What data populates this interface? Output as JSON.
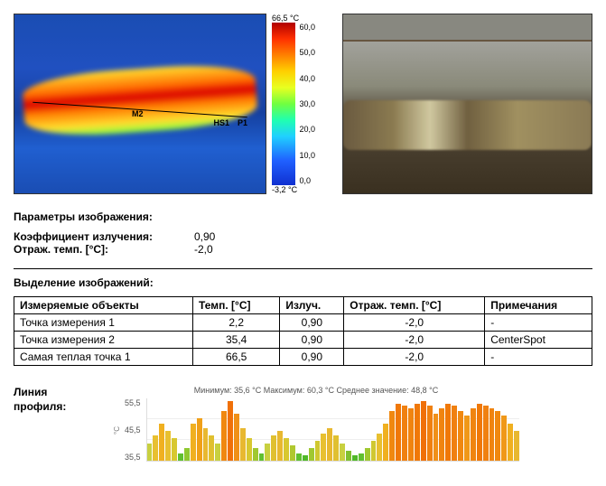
{
  "thermal": {
    "markers": {
      "m2": "M2",
      "hs1": "HS1",
      "p1": "P1"
    },
    "scale": {
      "max_label": "66,5 °C",
      "min_label": "-3,2 °C",
      "ticks": [
        "60,0",
        "50,0",
        "40,0",
        "30,0",
        "20,0",
        "10,0",
        "0,0"
      ]
    }
  },
  "params": {
    "title": "Параметры изображения:",
    "rows": [
      {
        "label": "Коэффициент излучения:",
        "value": "0,90"
      },
      {
        "label": "Отраж. темп. [°C]:",
        "value": "-2,0"
      }
    ]
  },
  "selection": {
    "title": "Выделение изображений:",
    "columns": [
      "Измеряемые объекты",
      "Темп. [°C]",
      "Излуч.",
      "Отраж. темп. [°C]",
      "Примечания"
    ],
    "rows": [
      [
        "Точка измерения 1",
        "2,2",
        "0,90",
        "-2,0",
        "-"
      ],
      [
        "Точка измерения 2",
        "35,4",
        "0,90",
        "-2,0",
        "CenterSpot"
      ],
      [
        "Самая теплая точка 1",
        "66,5",
        "0,90",
        "-2,0",
        "-"
      ]
    ]
  },
  "profile": {
    "label_line1": "Линия",
    "label_line2": "профиля:",
    "stats": "Минимум: 35,6 °C Максимум: 60,3 °C Среднее значение: 48,8 °C",
    "y_unit": "°C",
    "y_ticks": [
      "55,5",
      "45,5",
      "35,5"
    ],
    "y_min": 35,
    "y_max": 60,
    "bars": [
      {
        "v": 42,
        "c": "#c8d040"
      },
      {
        "v": 45,
        "c": "#e8c030"
      },
      {
        "v": 50,
        "c": "#f0b020"
      },
      {
        "v": 47,
        "c": "#e8c030"
      },
      {
        "v": 44,
        "c": "#d8c830"
      },
      {
        "v": 38,
        "c": "#60c030"
      },
      {
        "v": 40,
        "c": "#90c830"
      },
      {
        "v": 50,
        "c": "#f0b020"
      },
      {
        "v": 52,
        "c": "#f0a018"
      },
      {
        "v": 48,
        "c": "#e8b830"
      },
      {
        "v": 45,
        "c": "#e0c030"
      },
      {
        "v": 42,
        "c": "#c8d040"
      },
      {
        "v": 55,
        "c": "#f08810"
      },
      {
        "v": 59,
        "c": "#f07008"
      },
      {
        "v": 54,
        "c": "#f09018"
      },
      {
        "v": 48,
        "c": "#e8b830"
      },
      {
        "v": 44,
        "c": "#d8c830"
      },
      {
        "v": 40,
        "c": "#a0c830"
      },
      {
        "v": 38,
        "c": "#60c030"
      },
      {
        "v": 42,
        "c": "#c8d040"
      },
      {
        "v": 45,
        "c": "#e0c030"
      },
      {
        "v": 47,
        "c": "#e8b830"
      },
      {
        "v": 44,
        "c": "#d8c830"
      },
      {
        "v": 41,
        "c": "#b0c830"
      },
      {
        "v": 38,
        "c": "#60c030"
      },
      {
        "v": 37,
        "c": "#50b828"
      },
      {
        "v": 40,
        "c": "#a0c830"
      },
      {
        "v": 43,
        "c": "#d0c830"
      },
      {
        "v": 46,
        "c": "#e8c030"
      },
      {
        "v": 48,
        "c": "#e8b830"
      },
      {
        "v": 45,
        "c": "#e0c030"
      },
      {
        "v": 42,
        "c": "#c8d040"
      },
      {
        "v": 39,
        "c": "#80c030"
      },
      {
        "v": 37,
        "c": "#50b828"
      },
      {
        "v": 38,
        "c": "#60c030"
      },
      {
        "v": 40,
        "c": "#a0c830"
      },
      {
        "v": 43,
        "c": "#d0c830"
      },
      {
        "v": 46,
        "c": "#e8c030"
      },
      {
        "v": 50,
        "c": "#f0b020"
      },
      {
        "v": 55,
        "c": "#f08810"
      },
      {
        "v": 58,
        "c": "#f07808"
      },
      {
        "v": 57,
        "c": "#f08010"
      },
      {
        "v": 56,
        "c": "#f08410"
      },
      {
        "v": 58,
        "c": "#f07808"
      },
      {
        "v": 59,
        "c": "#f07008"
      },
      {
        "v": 57,
        "c": "#f08010"
      },
      {
        "v": 54,
        "c": "#f09018"
      },
      {
        "v": 56,
        "c": "#f08410"
      },
      {
        "v": 58,
        "c": "#f07808"
      },
      {
        "v": 57,
        "c": "#f08010"
      },
      {
        "v": 55,
        "c": "#f08810"
      },
      {
        "v": 53,
        "c": "#f09818"
      },
      {
        "v": 56,
        "c": "#f08410"
      },
      {
        "v": 58,
        "c": "#f07808"
      },
      {
        "v": 57,
        "c": "#f08010"
      },
      {
        "v": 56,
        "c": "#f08410"
      },
      {
        "v": 55,
        "c": "#f08810"
      },
      {
        "v": 53,
        "c": "#f09818"
      },
      {
        "v": 50,
        "c": "#f0b020"
      },
      {
        "v": 47,
        "c": "#e8b830"
      }
    ]
  }
}
